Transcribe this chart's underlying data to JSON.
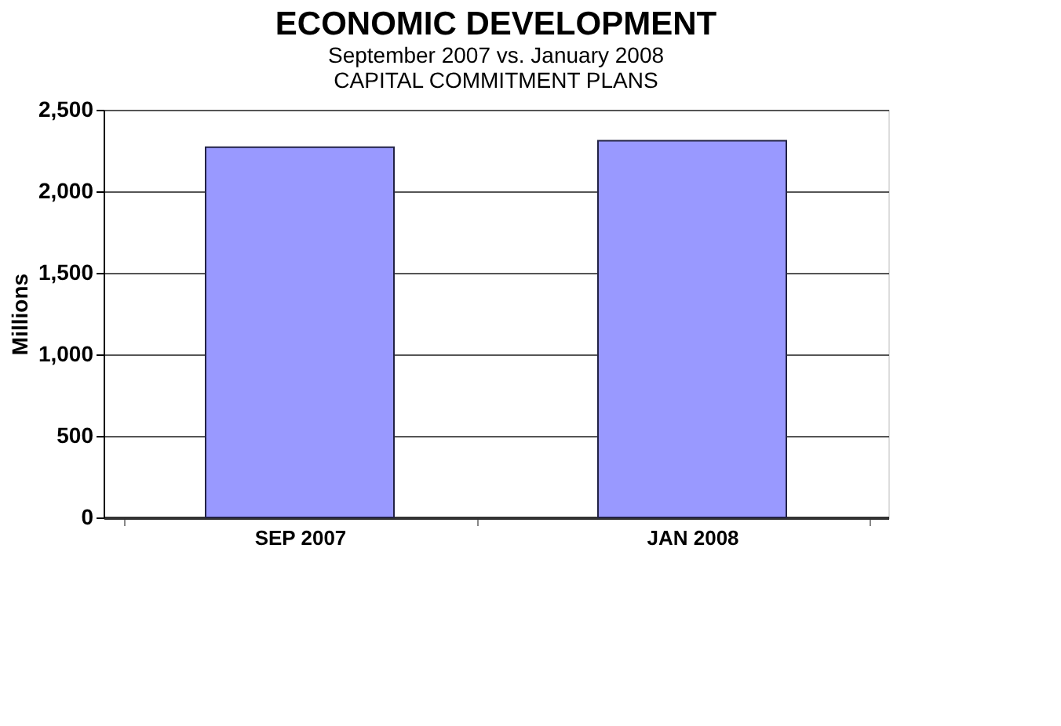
{
  "chart_data": {
    "type": "bar",
    "title": "ECONOMIC DEVELOPMENT",
    "subtitle": [
      "September 2007 vs. January 2008",
      "CAPITAL COMMITMENT PLANS"
    ],
    "ylabel": "Millions",
    "categories": [
      "SEP 2007",
      "JAN 2008"
    ],
    "values": [
      2270,
      2310
    ],
    "color": "#9999ff",
    "ylim": [
      0,
      2500
    ],
    "yticks": [
      {
        "value": 0,
        "label": "0"
      },
      {
        "value": 500,
        "label": "500"
      },
      {
        "value": 1000,
        "label": "1,000"
      },
      {
        "value": 1500,
        "label": "1,500"
      },
      {
        "value": 2000,
        "label": "2,000"
      },
      {
        "value": 2500,
        "label": "2,500"
      }
    ],
    "grid": "y"
  }
}
